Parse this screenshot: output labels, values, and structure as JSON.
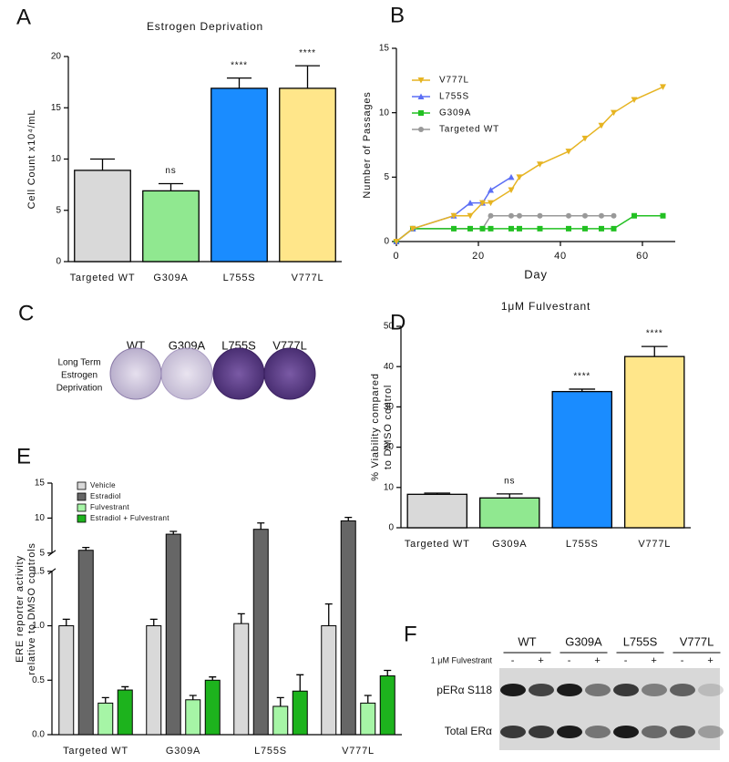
{
  "chart_data": [
    {
      "type": "bar",
      "panel": "A",
      "title": "Estrogen Deprivation",
      "ylabel": [
        "Cell Count x10⁴/mL"
      ],
      "categories": [
        "Targeted WT",
        "G309A",
        "L755S",
        "V777L"
      ],
      "values": [
        8.9,
        6.9,
        16.9,
        16.9
      ],
      "errors": [
        1.1,
        0.7,
        1.0,
        2.2
      ],
      "annotations": [
        null,
        "ns",
        "****",
        "****"
      ],
      "colors": [
        "#d9d9d9",
        "#90e890",
        "#1a8cff",
        "#ffe68a"
      ],
      "ylim": [
        0,
        20
      ],
      "yticks": [
        0,
        5,
        10,
        15,
        20
      ]
    },
    {
      "type": "line",
      "panel": "B",
      "xlabel": "Day",
      "ylabel": [
        "Number of Passages"
      ],
      "xlim": [
        0,
        68
      ],
      "xticks": [
        0,
        20,
        40,
        60
      ],
      "ylim": [
        0,
        15
      ],
      "yticks": [
        0,
        5,
        10,
        15
      ],
      "series": [
        {
          "name": "V777L",
          "color": "#e6b422",
          "marker": "v",
          "x": [
            0,
            4,
            14,
            18,
            21,
            23,
            28,
            30,
            35,
            42,
            46,
            50,
            53,
            58,
            65
          ],
          "values": [
            0,
            1,
            2,
            2,
            3,
            3,
            4,
            5,
            6,
            7,
            8,
            9,
            10,
            11,
            12
          ]
        },
        {
          "name": "L755S",
          "color": "#5b6ef5",
          "marker": "^",
          "x": [
            0,
            4,
            14,
            18,
            21,
            23,
            28
          ],
          "values": [
            0,
            1,
            2,
            3,
            3,
            4,
            5
          ]
        },
        {
          "name": "G309A",
          "color": "#22c022",
          "marker": "s",
          "x": [
            0,
            4,
            14,
            18,
            21,
            23,
            28,
            30,
            35,
            42,
            46,
            50,
            53,
            58,
            65
          ],
          "values": [
            0,
            1,
            1,
            1,
            1,
            1,
            1,
            1,
            1,
            1,
            1,
            1,
            1,
            2,
            2
          ]
        },
        {
          "name": "Targeted WT",
          "color": "#999999",
          "marker": "o",
          "x": [
            0,
            4,
            14,
            18,
            21,
            23,
            28,
            30,
            35,
            42,
            46,
            50,
            53
          ],
          "values": [
            0,
            1,
            1,
            1,
            1,
            2,
            2,
            2,
            2,
            2,
            2,
            2,
            2
          ]
        }
      ]
    },
    {
      "type": "bar",
      "panel": "D",
      "title": "1μM Fulvestrant",
      "ylabel": [
        "% Viability compared",
        "to DMSO control"
      ],
      "categories": [
        "Targeted WT",
        "G309A",
        "L755S",
        "V777L"
      ],
      "values": [
        8.3,
        7.4,
        33.8,
        42.5
      ],
      "errors": [
        0.3,
        1.0,
        0.6,
        2.5
      ],
      "annotations": [
        null,
        "ns",
        "****",
        "****"
      ],
      "colors": [
        "#d9d9d9",
        "#90e890",
        "#1a8cff",
        "#ffe68a"
      ],
      "ylim": [
        0,
        50
      ],
      "yticks": [
        0,
        10,
        20,
        30,
        40,
        50
      ]
    },
    {
      "type": "bar",
      "panel": "E",
      "ylabel": [
        "ERE reporter activity",
        "relative to DMSO controls"
      ],
      "categories": [
        "Targeted WT",
        "G309A",
        "L755S",
        "V777L"
      ],
      "ylim": [
        0,
        15
      ],
      "ybreak": [
        1.5,
        5
      ],
      "yticks": [
        {
          "value": 0,
          "label": "0.0"
        },
        0.5,
        {
          "value": 1,
          "label": "1.0"
        },
        1.5,
        5,
        10,
        15
      ],
      "series": [
        {
          "name": "Vehicle",
          "color": "#d9d9d9",
          "values": [
            1.0,
            1.0,
            1.02,
            1.0
          ],
          "errors": [
            0.06,
            0.06,
            0.09,
            0.2
          ]
        },
        {
          "name": "Estradiol",
          "color": "#666666",
          "values": [
            5.4,
            7.7,
            8.4,
            9.6
          ],
          "errors": [
            0.4,
            0.4,
            0.9,
            0.5
          ]
        },
        {
          "name": "Fulvestrant",
          "color": "#a6f5a6",
          "values": [
            0.29,
            0.32,
            0.26,
            0.29
          ],
          "errors": [
            0.05,
            0.04,
            0.08,
            0.07
          ]
        },
        {
          "name": "Estradiol + Fulvestrant",
          "color": "#1db31d",
          "values": [
            0.41,
            0.5,
            0.4,
            0.54
          ],
          "errors": [
            0.03,
            0.03,
            0.15,
            0.05
          ]
        }
      ]
    }
  ],
  "panel_C": {
    "label": "C",
    "columns": [
      "WT",
      "G309A",
      "L755S",
      "V777L"
    ],
    "row_label": [
      "Long Term",
      "Estrogen",
      "Deprivation"
    ]
  },
  "panel_F": {
    "label": "F",
    "columns": [
      "WT",
      "G309A",
      "L755S",
      "V777L"
    ],
    "treatment": "1 μM Fulvestrant",
    "signs": [
      "-",
      "+",
      "-",
      "+",
      "-",
      "+",
      "-",
      "+"
    ],
    "rows": [
      "pERα S118",
      "Total ERα"
    ]
  }
}
